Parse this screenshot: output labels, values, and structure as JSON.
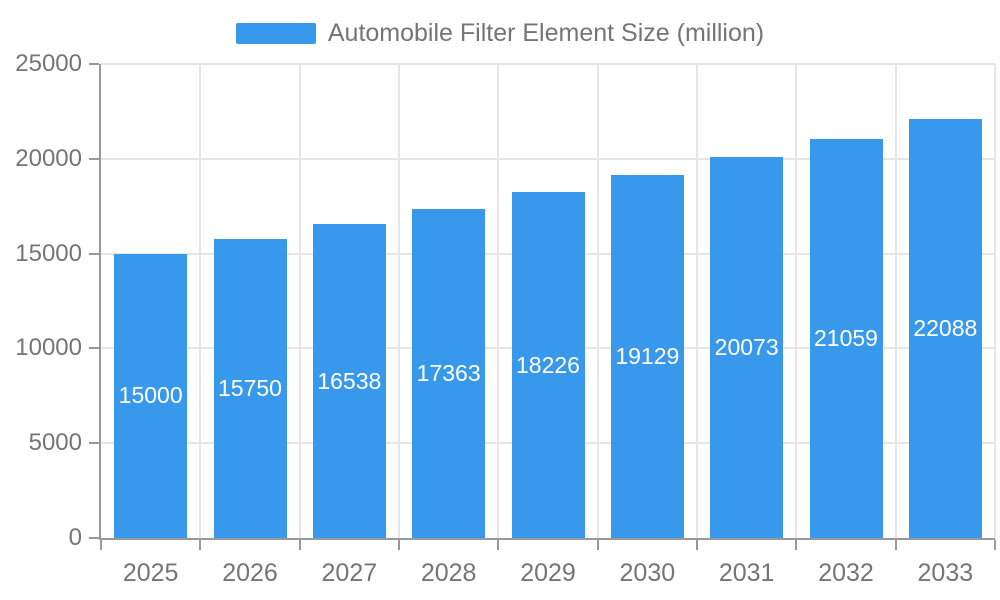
{
  "chart_data": {
    "type": "bar",
    "title": "",
    "legend_label": "Automobile Filter Element Size (million)",
    "categories": [
      "2025",
      "2026",
      "2027",
      "2028",
      "2029",
      "2030",
      "2031",
      "2032",
      "2033"
    ],
    "series": [
      {
        "name": "Automobile Filter Element Size (million)",
        "values": [
          15000,
          15750,
          16538,
          17363,
          18226,
          19129,
          20073,
          21059,
          22088
        ]
      }
    ],
    "bar_labels": [
      "15000",
      "15750",
      "16538",
      "17363",
      "18226",
      "19129",
      "20073",
      "21059",
      "22088"
    ],
    "xlabel": "",
    "ylabel": "",
    "ylim": [
      0,
      25000
    ],
    "yticks": [
      0,
      5000,
      10000,
      15000,
      20000,
      25000
    ],
    "ytick_labels": [
      "0",
      "5000",
      "10000",
      "15000",
      "20000",
      "25000"
    ],
    "grid": true,
    "legend_position": "top-center",
    "bar_labels_visible": true,
    "bar_label_position": "middle-center"
  },
  "colors": {
    "bar": "#3899EC",
    "axis_line": "#999999",
    "grid_line": "#E6E6E6",
    "tick_text": "#757575",
    "legend_text": "#757575",
    "bar_label_text": "#FFFFFF",
    "background": "#FFFFFF"
  }
}
